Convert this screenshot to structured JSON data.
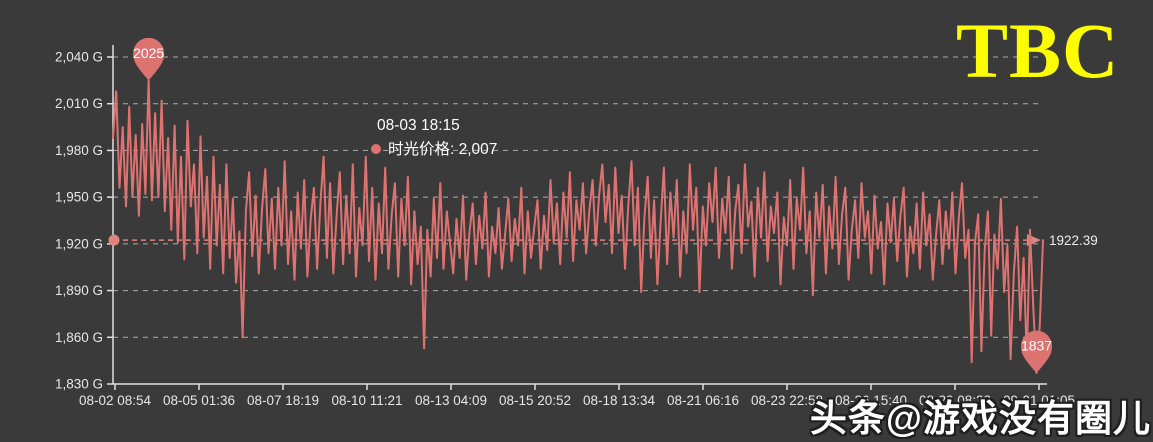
{
  "logo": {
    "text": "TBC",
    "color": "#fdfd02"
  },
  "watermark": {
    "text": "头条@游戏没有圈儿"
  },
  "tooltip": {
    "date": "08-03 18:15",
    "series_text": "时光价格: 2,007",
    "dot_color": "#dd7370"
  },
  "chart_data": {
    "type": "line",
    "series_name": "时光价格",
    "unit": "G",
    "ylim": [
      1830,
      2040
    ],
    "y_step": 30,
    "grid": true,
    "legend_position": "none",
    "y_ticks": [
      "1,830 G",
      "1,860 G",
      "1,890 G",
      "1,920 G",
      "1,950 G",
      "1,980 G",
      "2,010 G",
      "2,040 G"
    ],
    "x_ticks": [
      "08-02 08:54",
      "08-05 01:36",
      "08-07 18:19",
      "08-10 11:21",
      "08-13 04:09",
      "08-15 20:52",
      "08-18 13:34",
      "08-21 06:16",
      "08-23 22:58",
      "08-26 15:40",
      "08-29 08:23",
      "09-01 01:05"
    ],
    "max_point": {
      "label": "2025",
      "value": 2025
    },
    "min_point": {
      "label": "1837",
      "value": 1837
    },
    "last_value": 1922.39,
    "last_value_label": "1922.39",
    "colors": {
      "line": "#dd7370",
      "pin": "#dd7370",
      "markline": "#e08480",
      "grid": "#c9c9c9",
      "axis": "#e0e0e0",
      "label": "#e6e6e6",
      "background": "#3a3a3a"
    },
    "values": [
      1988,
      2018,
      1956,
      1995,
      1944,
      2008,
      1950,
      1990,
      1938,
      1997,
      1952,
      2025,
      1948,
      2004,
      1950,
      2012,
      1941,
      1988,
      1929,
      1996,
      1921,
      1976,
      1910,
      1999,
      1944,
      1971,
      1914,
      1989,
      1924,
      1963,
      1904,
      1976,
      1919,
      1958,
      1901,
      1971,
      1911,
      1949,
      1895,
      1928,
      1860,
      1941,
      1966,
      1912,
      1951,
      1901,
      1943,
      1968,
      1914,
      1949,
      1904,
      1956,
      1919,
      1973,
      1907,
      1941,
      1897,
      1953,
      1917,
      1961,
      1899,
      1936,
      1956,
      1904,
      1946,
      1976,
      1911,
      1959,
      1901,
      1938,
      1966,
      1907,
      1951,
      1914,
      1971,
      1899,
      1943,
      1919,
      1976,
      1909,
      1956,
      1897,
      1946,
      1914,
      1969,
      1904,
      1939,
      1959,
      1899,
      1949,
      1919,
      1963,
      1894,
      1941,
      1907,
      1931,
      1853,
      1929,
      1899,
      1949,
      1911,
      1959,
      1904,
      1941,
      1921,
      1901,
      1936,
      1911,
      1951,
      1897,
      1927,
      1946,
      1907,
      1938,
      1917,
      1953,
      1899,
      1931,
      1914,
      1943,
      1904,
      1926,
      1949,
      1909,
      1936,
      1919,
      1956,
      1901,
      1941,
      1911,
      1931,
      1948,
      1904,
      1938,
      1916,
      1961,
      1921,
      1946,
      1907,
      1953,
      1924,
      1966,
      1909,
      1948,
      1929,
      1959,
      1914,
      1941,
      1961,
      1919,
      1951,
      1971,
      1934,
      1958,
      1914,
      1969,
      1927,
      1951,
      1904,
      1944,
      1973,
      1919,
      1956,
      1889,
      1937,
      1963,
      1911,
      1948,
      1894,
      1934,
      1969,
      1907,
      1953,
      1924,
      1961,
      1899,
      1941,
      1914,
      1971,
      1929,
      1956,
      1889,
      1944,
      1919,
      1959,
      1934,
      1969,
      1911,
      1949,
      1927,
      1963,
      1904,
      1941,
      1958,
      1914,
      1971,
      1931,
      1947,
      1899,
      1956,
      1924,
      1966,
      1909,
      1944,
      1927,
      1953,
      1894,
      1937,
      1919,
      1961,
      1904,
      1949,
      1929,
      1969,
      1914,
      1941,
      1887,
      1953,
      1924,
      1958,
      1901,
      1944,
      1917,
      1963,
      1907,
      1939,
      1956,
      1897,
      1929,
      1948,
      1911,
      1959,
      1924,
      1941,
      1901,
      1951,
      1917,
      1934,
      1894,
      1946,
      1921,
      1949,
      1909,
      1938,
      1956,
      1899,
      1931,
      1914,
      1946,
      1904,
      1953,
      1919,
      1939,
      1897,
      1926,
      1948,
      1907,
      1941,
      1917,
      1953,
      1901,
      1936,
      1959,
      1911,
      1929,
      1844,
      1921,
      1939,
      1851,
      1916,
      1941,
      1861,
      1926,
      1904,
      1949,
      1889,
      1919,
      1846,
      1901,
      1931,
      1871,
      1911,
      1846,
      1929,
      1879,
      1837,
      1868,
      1922.39
    ]
  }
}
